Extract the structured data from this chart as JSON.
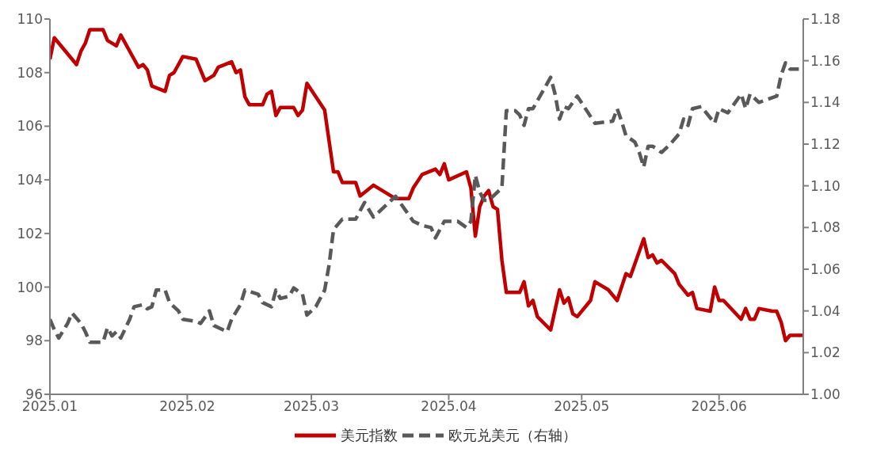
{
  "chart_data": {
    "type": "line",
    "xlim": [
      "2025-01-01",
      "2025-06-20"
    ],
    "xticks": [
      {
        "value": "2025-01-01",
        "label": "2025.01"
      },
      {
        "value": "2025-02-01",
        "label": "2025.02"
      },
      {
        "value": "2025-03-01",
        "label": "2025.03"
      },
      {
        "value": "2025-04-01",
        "label": "2025.04"
      },
      {
        "value": "2025-05-01",
        "label": "2025.05"
      },
      {
        "value": "2025-06-01",
        "label": "2025.06"
      }
    ],
    "ylim": [
      96,
      110
    ],
    "yticks": [
      96,
      98,
      100,
      102,
      104,
      106,
      108,
      110
    ],
    "y2lim": [
      1.0,
      1.18
    ],
    "y2ticks": [
      {
        "value": 1.0,
        "label": "1.00"
      },
      {
        "value": 1.02,
        "label": "1.02"
      },
      {
        "value": 1.04,
        "label": "1.04"
      },
      {
        "value": 1.06,
        "label": "1.06"
      },
      {
        "value": 1.08,
        "label": "1.08"
      },
      {
        "value": 1.1,
        "label": "1.10"
      },
      {
        "value": 1.12,
        "label": "1.12"
      },
      {
        "value": 1.14,
        "label": "1.14"
      },
      {
        "value": 1.16,
        "label": "1.16"
      },
      {
        "value": 1.18,
        "label": "1.18"
      }
    ],
    "grid": false,
    "legend": "bottom",
    "marker": "none",
    "series": [
      {
        "name": "美元指数",
        "color": "#c00000",
        "line_style": "solid",
        "x": [
          "2025-01-01",
          "2025-01-02",
          "2025-01-04",
          "2025-01-07",
          "2025-01-08",
          "2025-01-09",
          "2025-01-10",
          "2025-01-13",
          "2025-01-14",
          "2025-01-16",
          "2025-01-17",
          "2025-01-20",
          "2025-01-21",
          "2025-01-22",
          "2025-01-23",
          "2025-01-24",
          "2025-01-27",
          "2025-01-28",
          "2025-01-29",
          "2025-01-31",
          "2025-02-03",
          "2025-02-05",
          "2025-02-07",
          "2025-02-08",
          "2025-02-11",
          "2025-02-12",
          "2025-02-13",
          "2025-02-14",
          "2025-02-15",
          "2025-02-18",
          "2025-02-19",
          "2025-02-20",
          "2025-02-21",
          "2025-02-22",
          "2025-02-25",
          "2025-02-26",
          "2025-02-27",
          "2025-02-28",
          "2025-03-04",
          "2025-03-06",
          "2025-03-07",
          "2025-03-08",
          "2025-03-11",
          "2025-03-12",
          "2025-03-15",
          "2025-03-20",
          "2025-03-23",
          "2025-03-24",
          "2025-03-26",
          "2025-03-29",
          "2025-03-30",
          "2025-03-31",
          "2025-04-01",
          "2025-04-05",
          "2025-04-06",
          "2025-04-07",
          "2025-04-08",
          "2025-04-09",
          "2025-04-10",
          "2025-04-11",
          "2025-04-12",
          "2025-04-13",
          "2025-04-14",
          "2025-04-17",
          "2025-04-18",
          "2025-04-19",
          "2025-04-20",
          "2025-04-21",
          "2025-04-24",
          "2025-04-26",
          "2025-04-27",
          "2025-04-28",
          "2025-04-29",
          "2025-04-30",
          "2025-05-03",
          "2025-05-04",
          "2025-05-07",
          "2025-05-09",
          "2025-05-11",
          "2025-05-12",
          "2025-05-15",
          "2025-05-16",
          "2025-05-17",
          "2025-05-18",
          "2025-05-19",
          "2025-05-22",
          "2025-05-23",
          "2025-05-25",
          "2025-05-26",
          "2025-05-27",
          "2025-05-30",
          "2025-05-31",
          "2025-06-01",
          "2025-06-02",
          "2025-06-06",
          "2025-06-07",
          "2025-06-08",
          "2025-06-09",
          "2025-06-10",
          "2025-06-13",
          "2025-06-14",
          "2025-06-15",
          "2025-06-16",
          "2025-06-17",
          "2025-06-20"
        ],
        "values": [
          108.5,
          109.3,
          108.9,
          108.3,
          108.8,
          109.1,
          109.6,
          109.6,
          109.2,
          109.0,
          109.4,
          108.5,
          108.2,
          108.3,
          108.1,
          107.5,
          107.3,
          107.9,
          108.0,
          108.6,
          108.5,
          107.7,
          107.9,
          108.2,
          108.4,
          108.0,
          108.1,
          107.1,
          106.8,
          106.8,
          107.2,
          107.3,
          106.4,
          106.7,
          106.7,
          106.4,
          106.6,
          107.6,
          106.6,
          104.3,
          104.3,
          103.9,
          103.9,
          103.4,
          103.8,
          103.3,
          103.3,
          103.7,
          104.2,
          104.4,
          104.2,
          104.6,
          104.0,
          104.3,
          103.7,
          101.9,
          103.0,
          103.4,
          103.6,
          103.0,
          102.9,
          101.0,
          99.8,
          99.8,
          100.2,
          99.3,
          99.5,
          98.9,
          98.4,
          99.9,
          99.4,
          99.6,
          99.0,
          98.9,
          99.5,
          100.2,
          99.9,
          99.5,
          100.5,
          100.4,
          101.8,
          101.1,
          101.2,
          100.9,
          101.0,
          100.5,
          100.1,
          99.7,
          99.8,
          99.2,
          99.1,
          100.0,
          99.5,
          99.5,
          98.8,
          99.2,
          98.8,
          98.8,
          99.2,
          99.1,
          99.1,
          98.7,
          98.0,
          98.2,
          98.2
        ]
      },
      {
        "name": "欧元兑美元（右轴）",
        "color": "#595959",
        "line_style": "dashed",
        "axis": "y2",
        "x": [
          "2025-01-01",
          "2025-01-02",
          "2025-01-03",
          "2025-01-05",
          "2025-01-06",
          "2025-01-08",
          "2025-01-09",
          "2025-01-10",
          "2025-01-13",
          "2025-01-14",
          "2025-01-15",
          "2025-01-16",
          "2025-01-17",
          "2025-01-19",
          "2025-01-20",
          "2025-01-22",
          "2025-01-23",
          "2025-01-24",
          "2025-01-25",
          "2025-01-27",
          "2025-01-28",
          "2025-01-30",
          "2025-01-31",
          "2025-02-03",
          "2025-02-04",
          "2025-02-06",
          "2025-02-07",
          "2025-02-10",
          "2025-02-11",
          "2025-02-13",
          "2025-02-14",
          "2025-02-17",
          "2025-02-18",
          "2025-02-20",
          "2025-02-21",
          "2025-02-22",
          "2025-02-24",
          "2025-02-25",
          "2025-02-27",
          "2025-02-28",
          "2025-03-02",
          "2025-03-04",
          "2025-03-05",
          "2025-03-06",
          "2025-03-08",
          "2025-03-11",
          "2025-03-13",
          "2025-03-15",
          "2025-03-20",
          "2025-03-24",
          "2025-03-26",
          "2025-03-28",
          "2025-03-29",
          "2025-03-31",
          "2025-04-03",
          "2025-04-05",
          "2025-04-06",
          "2025-04-07",
          "2025-04-08",
          "2025-04-09",
          "2025-04-10",
          "2025-04-11",
          "2025-04-13",
          "2025-04-14",
          "2025-04-16",
          "2025-04-17",
          "2025-04-18",
          "2025-04-19",
          "2025-04-20",
          "2025-04-24",
          "2025-04-25",
          "2025-04-26",
          "2025-04-27",
          "2025-04-28",
          "2025-04-29",
          "2025-04-30",
          "2025-05-04",
          "2025-05-08",
          "2025-05-09",
          "2025-05-10",
          "2025-05-11",
          "2025-05-13",
          "2025-05-14",
          "2025-05-15",
          "2025-05-16",
          "2025-05-17",
          "2025-05-19",
          "2025-05-21",
          "2025-05-23",
          "2025-05-24",
          "2025-05-25",
          "2025-05-26",
          "2025-05-28",
          "2025-05-31",
          "2025-06-01",
          "2025-06-03",
          "2025-06-06",
          "2025-06-07",
          "2025-06-08",
          "2025-06-10",
          "2025-06-14",
          "2025-06-15",
          "2025-06-16",
          "2025-06-17",
          "2025-06-19"
        ],
        "values": [
          1.036,
          1.031,
          1.027,
          1.034,
          1.039,
          1.034,
          1.03,
          1.025,
          1.025,
          1.032,
          1.028,
          1.03,
          1.027,
          1.036,
          1.042,
          1.043,
          1.041,
          1.042,
          1.05,
          1.05,
          1.044,
          1.04,
          1.036,
          1.035,
          1.034,
          1.04,
          1.033,
          1.03,
          1.036,
          1.043,
          1.05,
          1.048,
          1.044,
          1.042,
          1.05,
          1.046,
          1.047,
          1.051,
          1.048,
          1.038,
          1.042,
          1.05,
          1.062,
          1.079,
          1.084,
          1.084,
          1.092,
          1.085,
          1.095,
          1.083,
          1.081,
          1.08,
          1.075,
          1.083,
          1.083,
          1.08,
          1.083,
          1.105,
          1.097,
          1.093,
          1.093,
          1.095,
          1.099,
          1.136,
          1.136,
          1.134,
          1.129,
          1.137,
          1.137,
          1.152,
          1.144,
          1.132,
          1.138,
          1.137,
          1.14,
          1.143,
          1.13,
          1.131,
          1.137,
          1.131,
          1.124,
          1.121,
          1.116,
          1.109,
          1.119,
          1.119,
          1.116,
          1.12,
          1.125,
          1.132,
          1.129,
          1.137,
          1.138,
          1.13,
          1.137,
          1.135,
          1.144,
          1.137,
          1.144,
          1.14,
          1.143,
          1.153,
          1.159,
          1.156,
          1.156
        ]
      }
    ]
  }
}
